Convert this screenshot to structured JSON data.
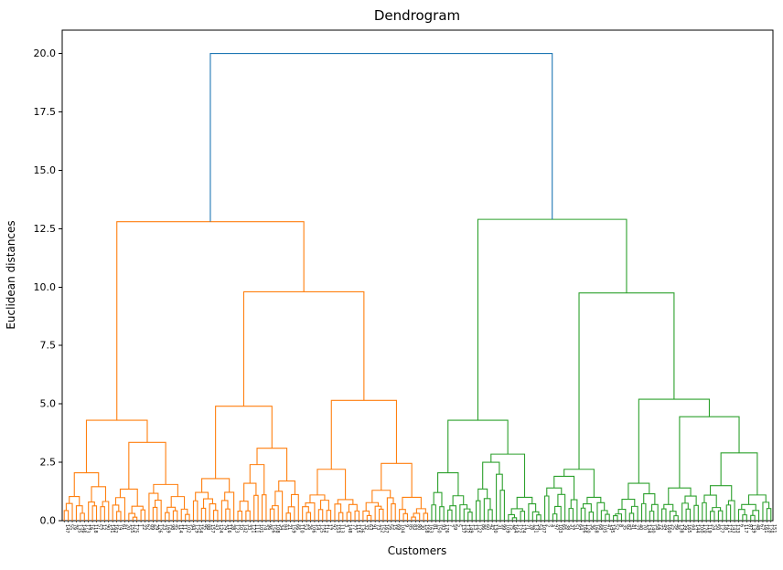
{
  "figure": {
    "title": "Dendrogram",
    "xlabel": "Customers",
    "ylabel": "Euclidean distances"
  },
  "chart_data": {
    "type": "dendrogram",
    "title": "Dendrogram",
    "xlabel": "Customers",
    "ylabel": "Euclidean distances",
    "ylim": [
      0,
      21
    ],
    "yticks": [
      "0.0",
      "2.5",
      "5.0",
      "7.5",
      "10.0",
      "12.5",
      "15.0",
      "17.5",
      "20.0"
    ],
    "grid": false,
    "legend": "none",
    "colors": {
      "above_threshold_link": "#1f77b4",
      "cluster_left": "#ff7f0e",
      "cluster_right": "#2ca02c",
      "spine": "#000000"
    },
    "root_merge_height": 20.0,
    "left_cluster_top_height": 12.8,
    "right_cluster_top_height": 12.9,
    "n_leaves_approx": 176,
    "leaf_labels_note": "customer indices along x-axis, rotated 90 degrees, illegible at this scale",
    "tree": {
      "h": 20.0,
      "color": "#1f77b4",
      "c": [
        {
          "h": 12.8,
          "color": "#ff7f0e",
          "c": [
            {
              "h": 4.3,
              "c": [
                {
                  "n": 12,
                  "hmax": 2.05
                },
                {
                  "h": 3.35,
                  "c": [
                    {
                      "n": 9,
                      "hmax": 1.35
                    },
                    {
                      "n": 11,
                      "hmax": 1.55
                    }
                  ]
                }
              ]
            },
            {
              "h": 9.8,
              "c": [
                {
                  "h": 4.9,
                  "c": [
                    {
                      "n": 11,
                      "hmax": 1.8
                    },
                    {
                      "h": 3.1,
                      "c": [
                        {
                          "n": 8,
                          "hmax": 2.4
                        },
                        {
                          "n": 8,
                          "hmax": 1.7
                        }
                      ]
                    }
                  ]
                },
                {
                  "h": 5.15,
                  "c": [
                    {
                      "h": 2.2,
                      "c": [
                        {
                          "n": 8,
                          "hmax": 1.1
                        },
                        {
                          "n": 7,
                          "hmax": 0.9
                        }
                      ]
                    },
                    {
                      "h": 2.45,
                      "c": [
                        {
                          "n": 9,
                          "hmax": 1.3
                        },
                        {
                          "n": 8,
                          "hmax": 1.0
                        }
                      ]
                    }
                  ]
                }
              ]
            }
          ]
        },
        {
          "h": 12.9,
          "color": "#2ca02c",
          "c": [
            {
              "h": 4.3,
              "c": [
                {
                  "n": 11,
                  "hmax": 2.05
                },
                {
                  "h": 2.85,
                  "c": [
                    {
                      "n": 8,
                      "hmax": 2.5
                    },
                    {
                      "n": 9,
                      "hmax": 1.0
                    }
                  ]
                }
              ]
            },
            {
              "h": 9.75,
              "c": [
                {
                  "h": 2.2,
                  "c": [
                    {
                      "n": 9,
                      "hmax": 1.9
                    },
                    {
                      "n": 8,
                      "hmax": 1.0
                    }
                  ]
                },
                {
                  "h": 5.2,
                  "c": [
                    {
                      "n": 12,
                      "hmax": 1.6
                    },
                    {
                      "h": 4.45,
                      "c": [
                        {
                          "n": 10,
                          "hmax": 1.4
                        },
                        {
                          "h": 2.9,
                          "c": [
                            {
                              "n": 9,
                              "hmax": 1.5
                            },
                            {
                              "n": 9,
                              "hmax": 1.1
                            }
                          ]
                        }
                      ]
                    }
                  ]
                }
              ]
            }
          ]
        }
      ]
    }
  }
}
